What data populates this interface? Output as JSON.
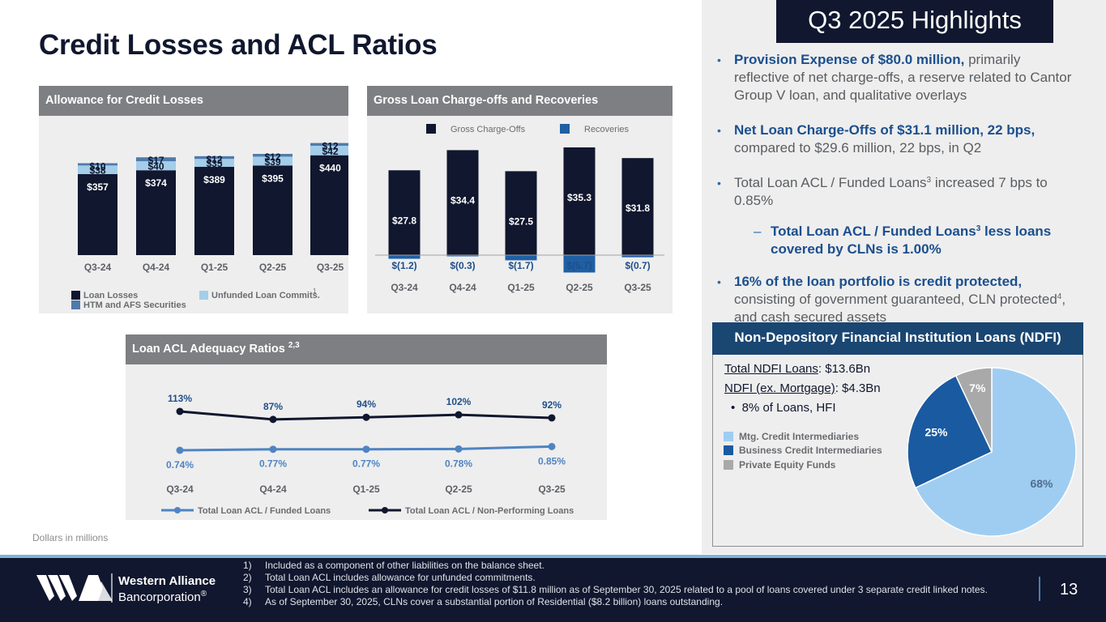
{
  "slide": {
    "title": "Credit Losses and ACL Ratios",
    "units_note": "Dollars in millions",
    "page_number": "13"
  },
  "acl_panel": {
    "header": "Allowance for Credit Losses",
    "legend": {
      "loan_losses": "Loan Losses",
      "unfunded": "Unfunded Loan Commits.",
      "unfunded_sup": "1",
      "securities": "HTM and AFS Securities"
    }
  },
  "chargeoff_panel": {
    "header": "Gross Loan Charge-offs and Recoveries",
    "legend": {
      "gross": "Gross Charge-Offs",
      "recoveries": "Recoveries"
    }
  },
  "ratio_panel": {
    "header": "Loan ACL Adequacy Ratios",
    "header_sup": "2,3",
    "legend": {
      "funded": "Total Loan ACL  / Funded Loans",
      "npl": "Total Loan ACL  / Non-Performing Loans"
    }
  },
  "chart_data": [
    {
      "type": "bar",
      "stacked": true,
      "title": "Allowance for Credit Losses",
      "categories": [
        "Q3-24",
        "Q4-24",
        "Q1-25",
        "Q2-25",
        "Q3-25"
      ],
      "series": [
        {
          "name": "Loan Losses",
          "values": [
            357,
            374,
            389,
            395,
            440
          ],
          "labels": [
            "$357",
            "$374",
            "$389",
            "$395",
            "$440"
          ],
          "color": "#10172e"
        },
        {
          "name": "Unfunded Loan Commits.",
          "values": [
            38,
            40,
            35,
            39,
            42
          ],
          "labels": [
            "$38",
            "$40",
            "$35",
            "$39",
            "$42"
          ],
          "color": "#a3cde9"
        },
        {
          "name": "HTM and AFS Securities",
          "values": [
            10,
            17,
            12,
            12,
            12
          ],
          "labels": [
            "$10",
            "$17",
            "$12",
            "$12",
            "$12"
          ],
          "color": "#4f7aab"
        }
      ],
      "ylim": [
        0,
        500
      ]
    },
    {
      "type": "bar",
      "title": "Gross Loan Charge-offs and Recoveries",
      "categories": [
        "Q3-24",
        "Q4-24",
        "Q1-25",
        "Q2-25",
        "Q3-25"
      ],
      "series": [
        {
          "name": "Gross Charge-Offs",
          "values": [
            27.8,
            34.4,
            27.5,
            35.3,
            31.8
          ],
          "labels": [
            "$27.8",
            "$34.4",
            "$27.5",
            "$35.3",
            "$31.8"
          ],
          "color": "#10172e"
        },
        {
          "name": "Recoveries",
          "values": [
            -1.2,
            -0.3,
            -1.7,
            -5.7,
            -0.7
          ],
          "labels": [
            "$(1.2)",
            "$(0.3)",
            "$(1.7)",
            "$(5.7)",
            "$(0.7)"
          ],
          "color": "#1f5fa4"
        }
      ],
      "ylim": [
        -6,
        36
      ]
    },
    {
      "type": "line",
      "title": "Loan ACL Adequacy Ratios",
      "categories": [
        "Q3-24",
        "Q4-24",
        "Q1-25",
        "Q2-25",
        "Q3-25"
      ],
      "series": [
        {
          "name": "Total Loan ACL / Non-Performing Loans",
          "values": [
            113,
            87,
            94,
            102,
            92
          ],
          "labels": [
            "113%",
            "87%",
            "94%",
            "102%",
            "92%"
          ],
          "color": "#10172e"
        },
        {
          "name": "Total Loan ACL / Funded Loans",
          "values": [
            0.74,
            0.77,
            0.77,
            0.78,
            0.85
          ],
          "labels": [
            "0.74%",
            "0.77%",
            "0.77%",
            "0.78%",
            "0.85%"
          ],
          "color": "#4f84c2"
        }
      ]
    },
    {
      "type": "pie",
      "title": "Non-Depository Financial Institution Loans (NDFI)",
      "categories": [
        "Mtg. Credit Intermediaries",
        "Business Credit Intermediaries",
        "Private Equity Funds"
      ],
      "values": [
        68,
        25,
        7
      ],
      "labels": [
        "68%",
        "25%",
        "7%"
      ],
      "colors": [
        "#9fcdf2",
        "#1a5aa0",
        "#a9a9a9"
      ]
    }
  ],
  "highlights": {
    "title": "Q3 2025 Highlights",
    "b1_strong": "Provision Expense of $80.0 million,",
    "b1_rest": " primarily reflective of net charge-offs, a reserve related to Cantor Group V loan, and qualitative overlays",
    "b2_strong": "Net Loan Charge-Offs of $31.1 million, 22 bps,",
    "b2_rest": " compared to $29.6 million, 22 bps, in Q2",
    "b3_pre": "Total Loan ACL / Funded Loans",
    "b3_sup": "3",
    "b3_post": " increased 7 bps to 0.85%",
    "sub_pre": "Total Loan ACL / Funded Loans",
    "sub_sup": "3",
    "sub_post": " less loans covered by CLNs is 1.00%",
    "b4_strong": "16% of the loan portfolio is credit protected,",
    "b4_pre": " consisting of government guaranteed, CLN protected",
    "b4_sup": "4",
    "b4_post": ", and cash secured assets"
  },
  "ndfi": {
    "header": "Non-Depository Financial Institution Loans (NDFI)",
    "total_label": "Total NDFI Loans",
    "total_value": ": $13.6Bn",
    "ex_label": "NDFI (ex. Mortgage)",
    "ex_value": ": $4.3Bn",
    "bullet": "8% of Loans, HFI"
  },
  "footnotes": [
    {
      "n": "1)",
      "text": "Included as a component of other liabilities on the balance sheet."
    },
    {
      "n": "2)",
      "text": "Total Loan ACL includes allowance for unfunded commitments."
    },
    {
      "n": "3)",
      "text": "Total Loan ACL includes an allowance for credit losses of $11.8 million as of September 30, 2025 related to a pool of loans covered under 3 separate credit linked notes."
    },
    {
      "n": "4)",
      "text": "As of September 30, 2025, CLNs cover a substantial portion of Residential ($8.2 billion) loans outstanding."
    }
  ],
  "brand": {
    "name_line1": "Western Alliance",
    "name_line2": "Bancorporation",
    "mark": "®"
  }
}
